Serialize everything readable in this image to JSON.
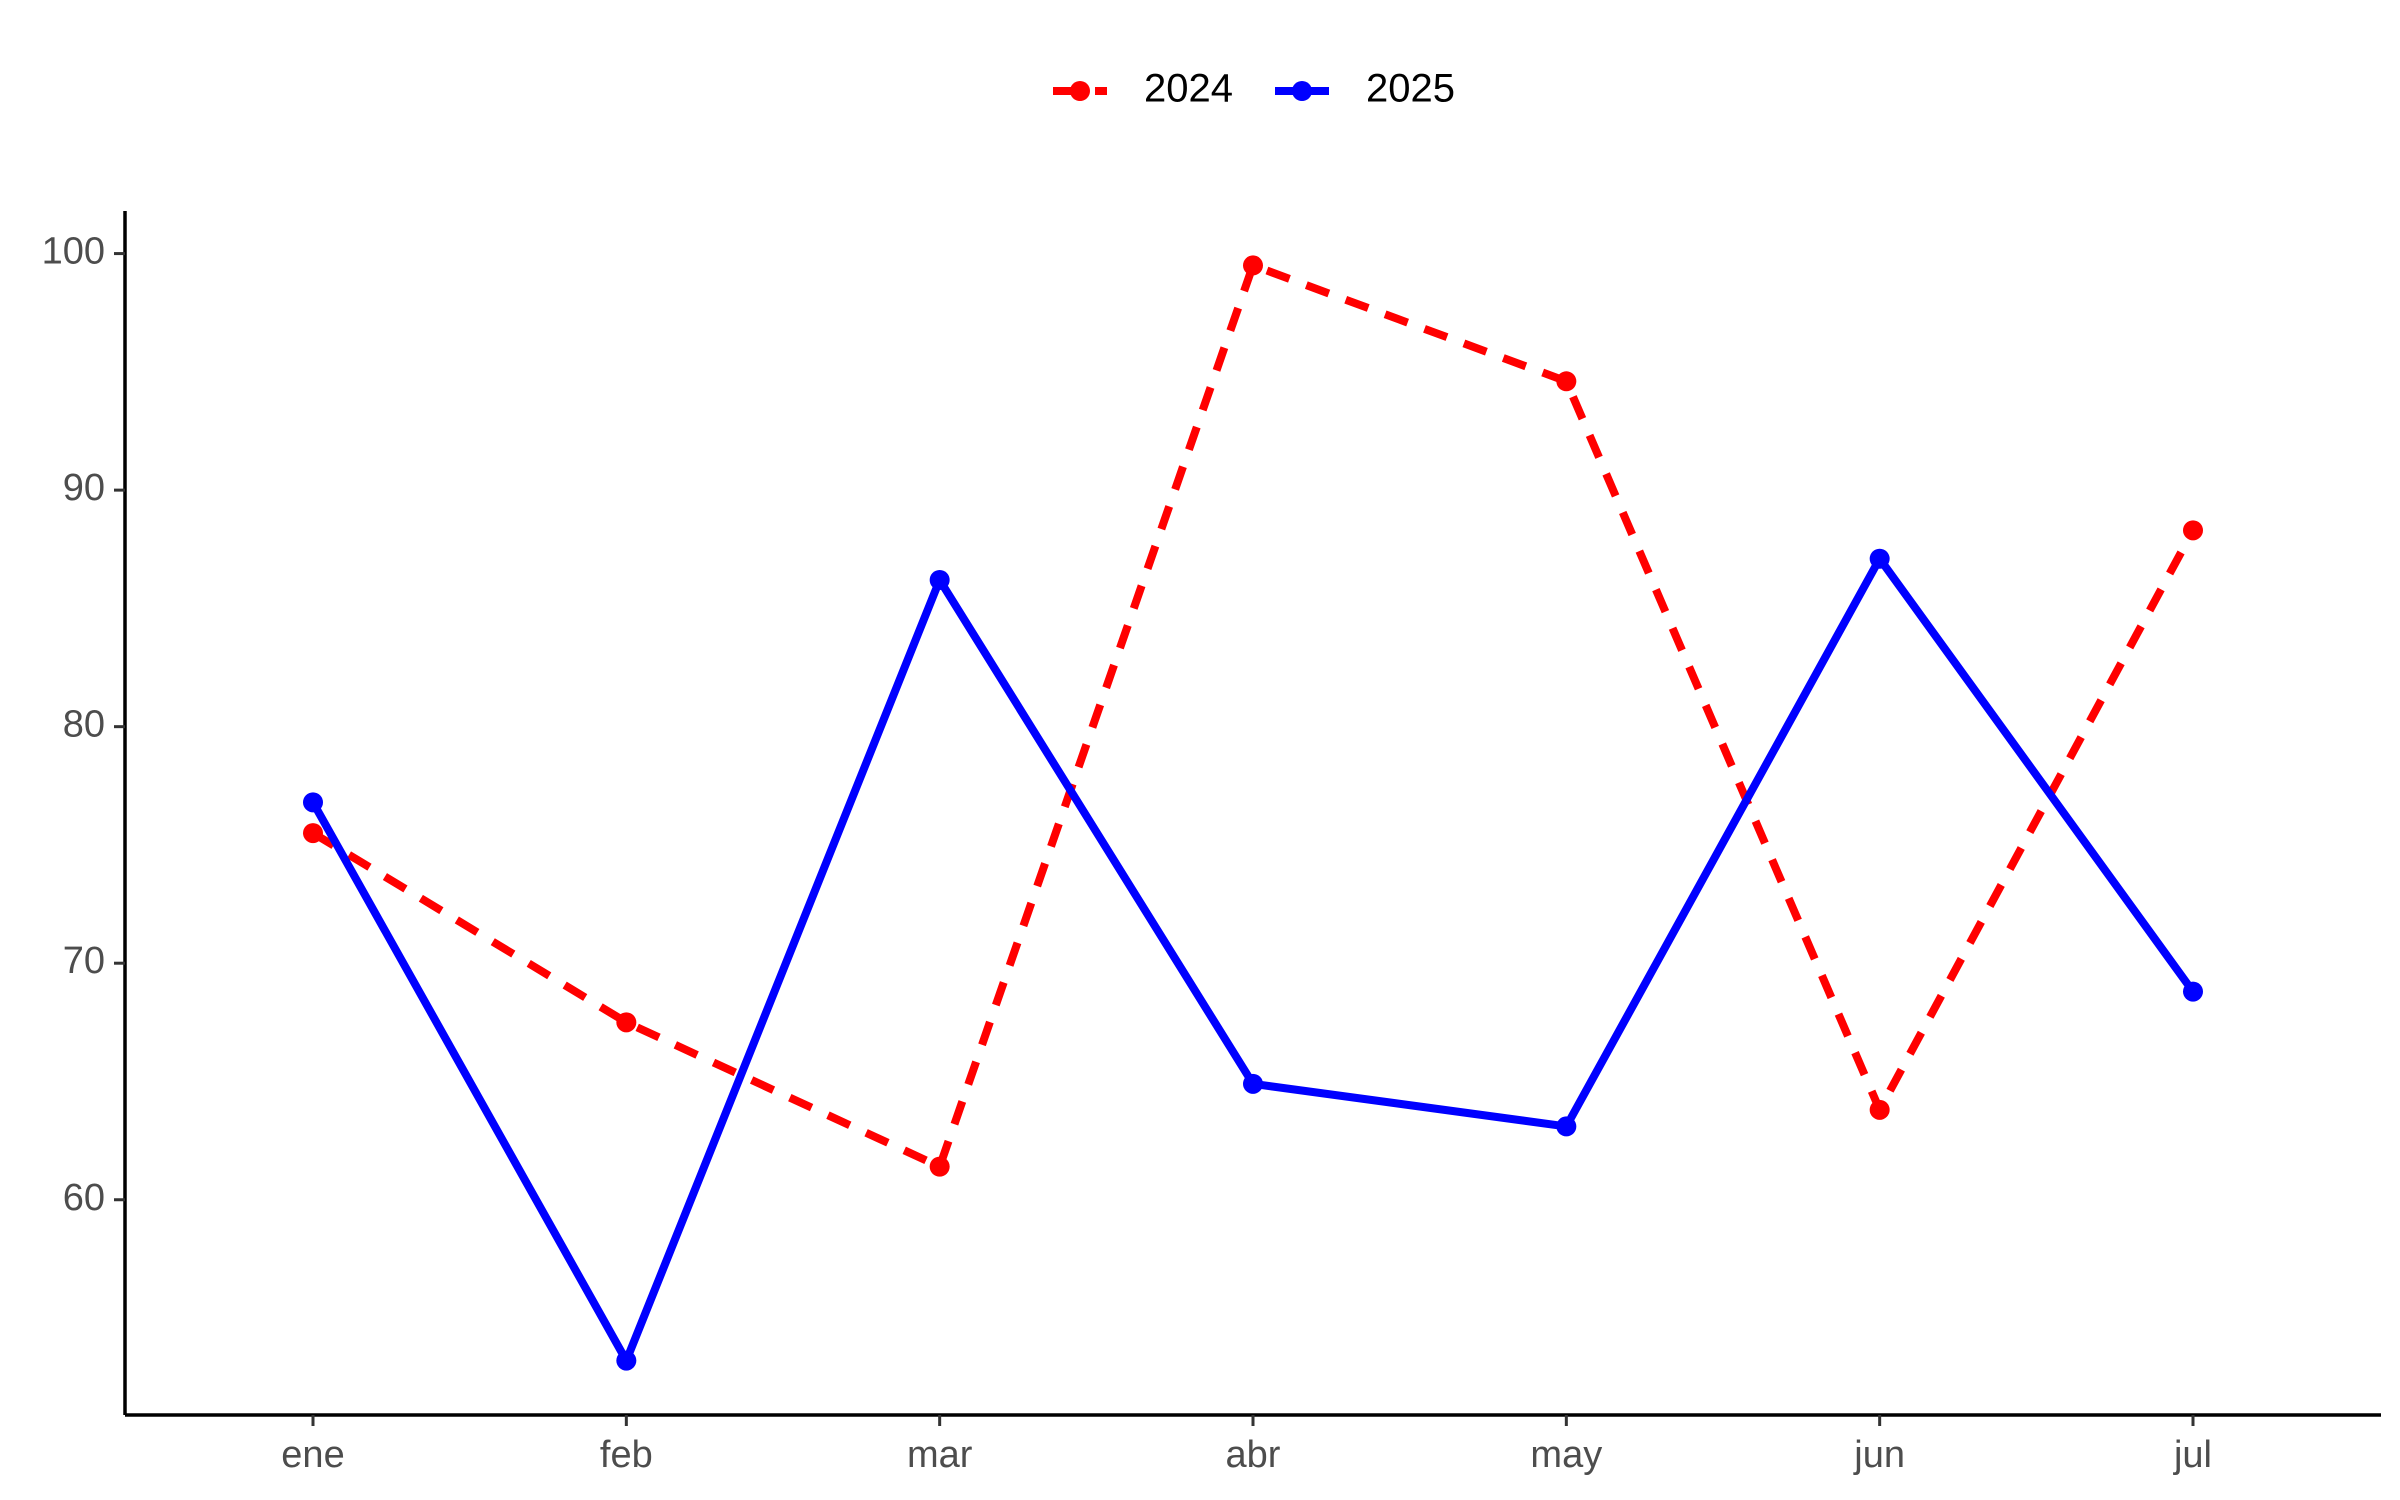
{
  "chart_data": {
    "type": "line",
    "categories": [
      "ene",
      "feb",
      "mar",
      "abr",
      "may",
      "jun",
      "jul"
    ],
    "series": [
      {
        "name": "2024",
        "color": "#ff0000",
        "line_style": "dashed",
        "values": [
          75.5,
          67.5,
          61.4,
          99.5,
          94.6,
          63.8,
          88.3
        ]
      },
      {
        "name": "2025",
        "color": "#0000ff",
        "line_style": "solid",
        "values": [
          76.8,
          53.2,
          86.2,
          64.9,
          63.1,
          87.1,
          68.8
        ]
      }
    ],
    "ylim": [
      50.9,
      101.8
    ],
    "yticks": [
      60,
      70,
      80,
      90,
      100
    ],
    "grid": false,
    "legend": "top"
  }
}
